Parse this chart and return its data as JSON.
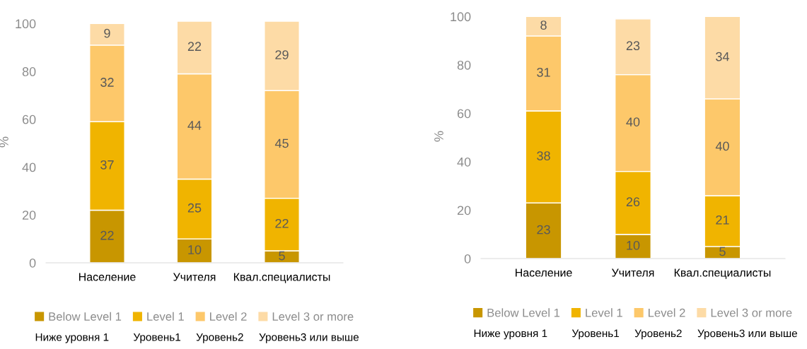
{
  "chart_data": [
    {
      "type": "bar",
      "stacked": true,
      "ylabel": "%",
      "categories": [
        "Население",
        "Учителя",
        "Квал.специалисты"
      ],
      "ylim": [
        0,
        101
      ],
      "yticks": [
        0,
        20,
        40,
        60,
        80,
        100
      ],
      "data_labels": true,
      "legend": "bottom",
      "grid": false,
      "series": [
        {
          "name": "Below Level 1",
          "color": "#c89600",
          "values": [
            22,
            10,
            5
          ]
        },
        {
          "name": "Level 1",
          "color": "#f0b400",
          "values": [
            37,
            25,
            22
          ]
        },
        {
          "name": "Level 2",
          "color": "#fdc86a",
          "values": [
            32,
            44,
            45
          ]
        },
        {
          "name": "Level 3 or more",
          "color": "#fddba6",
          "values": [
            9,
            22,
            29
          ]
        }
      ],
      "annotations": [
        "Ниже уровня 1",
        "Уровень1",
        "Уровень2",
        "Уровень3 или выше"
      ]
    },
    {
      "type": "bar",
      "stacked": true,
      "ylabel": "%",
      "categories": [
        "Население",
        "Учителя",
        "Квал.специалисты"
      ],
      "ylim": [
        0,
        101
      ],
      "yticks": [
        0,
        20,
        40,
        60,
        80,
        100
      ],
      "data_labels": true,
      "legend": "bottom",
      "grid": false,
      "series": [
        {
          "name": "Below Level 1",
          "color": "#c89600",
          "values": [
            23,
            10,
            5
          ]
        },
        {
          "name": "Level 1",
          "color": "#f0b400",
          "values": [
            38,
            26,
            21
          ]
        },
        {
          "name": "Level 2",
          "color": "#fdc86a",
          "values": [
            31,
            40,
            40
          ]
        },
        {
          "name": "Level 3 or more",
          "color": "#fddba6",
          "values": [
            8,
            23,
            34
          ]
        }
      ],
      "annotations": [
        "Ниже уровня 1",
        "Уровень1",
        "Уровень2",
        "Уровень3 или выше"
      ]
    }
  ]
}
